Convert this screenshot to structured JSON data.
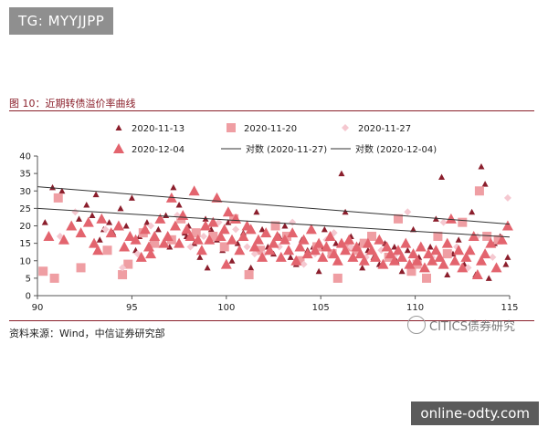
{
  "overlay_tag": "TG: MYYJJPP",
  "figure_title": "图 10：近期转债溢价率曲线",
  "source_note": "资料来源：Wind，中信证券研究部",
  "watermark_text": "CITICS债券研究",
  "url_badge": "online-odty.com",
  "colors": {
    "s1": "#8b1e2c",
    "s2": "#ef9ea3",
    "s3": "#f5c8d0",
    "s4": "#e3646e",
    "trend": "#333333",
    "brand": "#8a1f2a"
  },
  "chart_data": {
    "type": "scatter",
    "title": "",
    "xlabel": "",
    "ylabel": "",
    "xlim": [
      90,
      115
    ],
    "ylim": [
      0,
      40
    ],
    "x_ticks": [
      90,
      95,
      100,
      105,
      110,
      115
    ],
    "y_ticks": [
      0,
      5,
      10,
      15,
      20,
      25,
      30,
      35,
      40
    ],
    "legend_position": "top",
    "series": [
      {
        "name": "2020-11-13",
        "marker": "triangle-small",
        "points": [
          [
            90.4,
            21
          ],
          [
            90.8,
            31
          ],
          [
            91.3,
            30
          ],
          [
            92.2,
            22
          ],
          [
            92.6,
            26
          ],
          [
            92.9,
            23
          ],
          [
            93.1,
            29
          ],
          [
            93.5,
            19
          ],
          [
            93.8,
            21
          ],
          [
            94.0,
            18
          ],
          [
            94.4,
            25
          ],
          [
            94.7,
            20
          ],
          [
            95.0,
            28
          ],
          [
            95.4,
            17
          ],
          [
            95.8,
            21
          ],
          [
            96.1,
            16
          ],
          [
            96.4,
            19
          ],
          [
            96.8,
            23
          ],
          [
            97.0,
            14
          ],
          [
            97.2,
            31
          ],
          [
            97.5,
            26
          ],
          [
            97.8,
            18
          ],
          [
            98.0,
            20
          ],
          [
            98.3,
            15
          ],
          [
            98.6,
            11
          ],
          [
            98.9,
            22
          ],
          [
            99.2,
            19
          ],
          [
            99.5,
            16
          ],
          [
            99.8,
            13
          ],
          [
            100.1,
            21
          ],
          [
            100.3,
            10
          ],
          [
            100.6,
            15
          ],
          [
            100.9,
            18
          ],
          [
            101.3,
            8
          ],
          [
            101.6,
            24
          ],
          [
            101.9,
            19
          ],
          [
            102.2,
            14
          ],
          [
            102.5,
            12
          ],
          [
            102.8,
            17
          ],
          [
            103.1,
            20
          ],
          [
            103.4,
            11
          ],
          [
            103.7,
            9
          ],
          [
            104.0,
            16
          ],
          [
            104.3,
            13
          ],
          [
            104.6,
            14
          ],
          [
            104.9,
            7
          ],
          [
            105.2,
            19
          ],
          [
            105.5,
            12
          ],
          [
            105.8,
            15
          ],
          [
            106.1,
            35
          ],
          [
            106.3,
            24
          ],
          [
            106.6,
            17
          ],
          [
            106.9,
            14
          ],
          [
            107.2,
            8
          ],
          [
            107.5,
            13
          ],
          [
            107.8,
            11
          ],
          [
            108.1,
            9
          ],
          [
            108.4,
            15
          ],
          [
            108.7,
            12
          ],
          [
            109.0,
            10
          ],
          [
            109.3,
            7
          ],
          [
            109.6,
            13
          ],
          [
            109.9,
            19
          ],
          [
            110.2,
            11
          ],
          [
            110.5,
            8
          ],
          [
            110.8,
            14
          ],
          [
            111.1,
            22
          ],
          [
            111.4,
            34
          ],
          [
            111.7,
            6
          ],
          [
            112.0,
            12
          ],
          [
            112.3,
            16
          ],
          [
            112.6,
            9
          ],
          [
            112.9,
            13
          ],
          [
            113.2,
            6
          ],
          [
            113.5,
            37
          ],
          [
            113.7,
            32
          ],
          [
            113.9,
            5
          ],
          [
            114.2,
            15
          ],
          [
            114.5,
            17
          ],
          [
            114.8,
            9
          ],
          [
            114.9,
            11
          ],
          [
            113.0,
            24
          ],
          [
            108.9,
            14
          ],
          [
            107.1,
            15
          ],
          [
            105.0,
            14
          ],
          [
            99.0,
            8
          ],
          [
            97.9,
            17
          ],
          [
            96.3,
            15
          ],
          [
            95.2,
            13
          ],
          [
            93.3,
            16
          ]
        ]
      },
      {
        "name": "2020-11-20",
        "marker": "square",
        "points": [
          [
            90.3,
            7
          ],
          [
            90.9,
            5
          ],
          [
            91.1,
            28
          ],
          [
            92.3,
            8
          ],
          [
            93.7,
            13
          ],
          [
            94.5,
            6
          ],
          [
            94.8,
            9
          ],
          [
            95.6,
            18
          ],
          [
            96.2,
            15
          ],
          [
            97.1,
            16
          ],
          [
            97.6,
            22
          ],
          [
            98.4,
            18
          ],
          [
            99.3,
            17
          ],
          [
            99.9,
            14
          ],
          [
            100.4,
            22
          ],
          [
            101.2,
            6
          ],
          [
            101.8,
            13
          ],
          [
            102.6,
            20
          ],
          [
            103.2,
            17
          ],
          [
            103.9,
            10
          ],
          [
            104.8,
            14
          ],
          [
            105.6,
            12
          ],
          [
            105.9,
            5
          ],
          [
            106.4,
            14
          ],
          [
            106.9,
            13
          ],
          [
            107.3,
            15
          ],
          [
            107.7,
            17
          ],
          [
            108.6,
            11
          ],
          [
            109.1,
            22
          ],
          [
            109.8,
            7
          ],
          [
            110.1,
            9
          ],
          [
            110.6,
            5
          ],
          [
            111.2,
            17
          ],
          [
            111.7,
            12
          ],
          [
            112.5,
            21
          ],
          [
            113.4,
            30
          ],
          [
            113.8,
            17
          ],
          [
            114.4,
            16
          ]
        ]
      },
      {
        "name": "2020-11-27",
        "marker": "diamond",
        "points": [
          [
            91.2,
            17
          ],
          [
            92.0,
            24
          ],
          [
            93.6,
            19
          ],
          [
            94.5,
            8
          ],
          [
            95.3,
            12
          ],
          [
            96.0,
            20
          ],
          [
            97.4,
            23
          ],
          [
            98.1,
            14
          ],
          [
            98.8,
            17
          ],
          [
            99.6,
            21
          ],
          [
            100.5,
            19
          ],
          [
            101.1,
            14
          ],
          [
            101.5,
            12
          ],
          [
            102.0,
            12
          ],
          [
            102.8,
            14
          ],
          [
            103.5,
            21
          ],
          [
            104.1,
            9
          ],
          [
            104.7,
            12
          ],
          [
            105.3,
            16
          ],
          [
            105.7,
            18
          ],
          [
            106.6,
            14
          ],
          [
            107.4,
            11
          ],
          [
            108.2,
            13
          ],
          [
            109.0,
            12
          ],
          [
            109.6,
            24
          ],
          [
            110.3,
            14
          ],
          [
            110.9,
            11
          ],
          [
            111.5,
            21
          ],
          [
            112.2,
            14
          ],
          [
            112.8,
            8
          ],
          [
            113.3,
            17
          ],
          [
            114.1,
            11
          ],
          [
            114.9,
            28
          ]
        ]
      },
      {
        "name": "2020-12-04",
        "marker": "triangle",
        "points": [
          [
            90.6,
            17
          ],
          [
            91.4,
            16
          ],
          [
            91.8,
            20
          ],
          [
            92.3,
            18
          ],
          [
            92.7,
            21
          ],
          [
            93.0,
            15
          ],
          [
            93.4,
            22
          ],
          [
            93.9,
            18
          ],
          [
            94.3,
            20
          ],
          [
            94.6,
            14
          ],
          [
            94.9,
            17
          ],
          [
            95.2,
            16
          ],
          [
            95.5,
            11
          ],
          [
            95.7,
            19
          ],
          [
            95.9,
            14
          ],
          [
            96.2,
            17
          ],
          [
            96.5,
            22
          ],
          [
            96.7,
            15
          ],
          [
            96.9,
            17
          ],
          [
            97.1,
            28
          ],
          [
            97.3,
            20
          ],
          [
            97.5,
            15
          ],
          [
            97.7,
            23
          ],
          [
            97.9,
            19
          ],
          [
            98.1,
            17
          ],
          [
            98.3,
            30
          ],
          [
            98.5,
            16
          ],
          [
            98.7,
            13
          ],
          [
            98.9,
            20
          ],
          [
            99.1,
            16
          ],
          [
            99.3,
            21
          ],
          [
            99.5,
            28
          ],
          [
            99.7,
            17
          ],
          [
            99.9,
            19
          ],
          [
            100.1,
            24
          ],
          [
            100.3,
            16
          ],
          [
            100.5,
            22
          ],
          [
            100.7,
            13
          ],
          [
            100.9,
            17
          ],
          [
            101.1,
            20
          ],
          [
            101.3,
            19
          ],
          [
            101.5,
            14
          ],
          [
            101.7,
            16
          ],
          [
            101.9,
            11
          ],
          [
            102.1,
            18
          ],
          [
            102.3,
            13
          ],
          [
            102.5,
            15
          ],
          [
            102.7,
            17
          ],
          [
            102.9,
            11
          ],
          [
            103.1,
            16
          ],
          [
            103.3,
            13
          ],
          [
            103.5,
            18
          ],
          [
            103.7,
            10
          ],
          [
            103.9,
            14
          ],
          [
            104.1,
            16
          ],
          [
            104.3,
            12
          ],
          [
            104.5,
            19
          ],
          [
            104.7,
            13
          ],
          [
            104.9,
            15
          ],
          [
            105.1,
            11
          ],
          [
            105.3,
            14
          ],
          [
            105.5,
            17
          ],
          [
            105.7,
            12
          ],
          [
            105.9,
            10
          ],
          [
            106.1,
            15
          ],
          [
            106.3,
            13
          ],
          [
            106.5,
            16
          ],
          [
            106.7,
            11
          ],
          [
            106.9,
            14
          ],
          [
            107.1,
            12
          ],
          [
            107.3,
            10
          ],
          [
            107.5,
            15
          ],
          [
            107.7,
            13
          ],
          [
            107.9,
            11
          ],
          [
            108.1,
            16
          ],
          [
            108.3,
            9
          ],
          [
            108.5,
            14
          ],
          [
            108.7,
            12
          ],
          [
            108.9,
            10
          ],
          [
            109.1,
            13
          ],
          [
            109.3,
            11
          ],
          [
            109.5,
            15
          ],
          [
            109.7,
            9
          ],
          [
            109.9,
            12
          ],
          [
            110.1,
            10
          ],
          [
            110.3,
            14
          ],
          [
            110.5,
            8
          ],
          [
            110.7,
            12
          ],
          [
            110.9,
            10
          ],
          [
            111.1,
            13
          ],
          [
            111.3,
            11
          ],
          [
            111.5,
            9
          ],
          [
            111.7,
            15
          ],
          [
            111.9,
            22
          ],
          [
            112.1,
            10
          ],
          [
            112.3,
            13
          ],
          [
            112.5,
            8
          ],
          [
            112.7,
            11
          ],
          [
            112.9,
            13
          ],
          [
            113.1,
            17
          ],
          [
            113.3,
            6
          ],
          [
            113.5,
            10
          ],
          [
            113.7,
            12
          ],
          [
            114.0,
            15
          ],
          [
            114.3,
            8
          ],
          [
            114.6,
            16
          ],
          [
            114.9,
            20
          ],
          [
            100.0,
            9
          ],
          [
            96.0,
            12
          ],
          [
            93.2,
            13
          ]
        ]
      }
    ],
    "trendlines": [
      {
        "name": "对数 (2020-11-27)",
        "x": [
          90,
          115
        ],
        "y": [
          31.2,
          20.5
        ]
      },
      {
        "name": "对数 (2020-12-04)",
        "x": [
          90,
          115
        ],
        "y": [
          25.0,
          16.8
        ]
      }
    ]
  }
}
